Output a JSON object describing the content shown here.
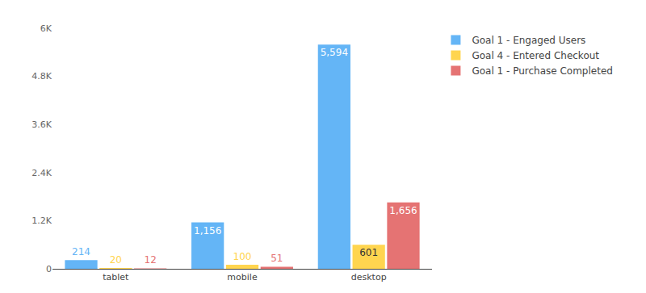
{
  "chart_data": {
    "type": "bar",
    "categories": [
      "tablet",
      "mobile",
      "desktop"
    ],
    "series": [
      {
        "name": "Goal 1 - Engaged Users",
        "color": "#64b5f6",
        "values": [
          214,
          1156,
          5594
        ],
        "value_labels": [
          "214",
          "1,156",
          "5,594"
        ]
      },
      {
        "name": "Goal 4 - Entered Checkout",
        "color": "#ffd54f",
        "values": [
          20,
          100,
          601
        ],
        "value_labels": [
          "20",
          "100",
          "601"
        ]
      },
      {
        "name": "Goal 1 - Purchase Completed",
        "color": "#e57373",
        "values": [
          12,
          51,
          1656
        ],
        "value_labels": [
          "12",
          "51",
          "1,656"
        ]
      }
    ],
    "ylim": [
      0,
      6000
    ],
    "yticks": [
      0,
      {
        "value": 1200,
        "label": "1.2K"
      },
      {
        "value": 2400,
        "label": "2.4K"
      },
      {
        "value": 3600,
        "label": "3.6K"
      },
      {
        "value": 4800,
        "label": "4.8K"
      },
      {
        "value": 6000,
        "label": "6K"
      }
    ],
    "grid": false,
    "legend": "top right",
    "stacked": false,
    "data_labels": true
  }
}
